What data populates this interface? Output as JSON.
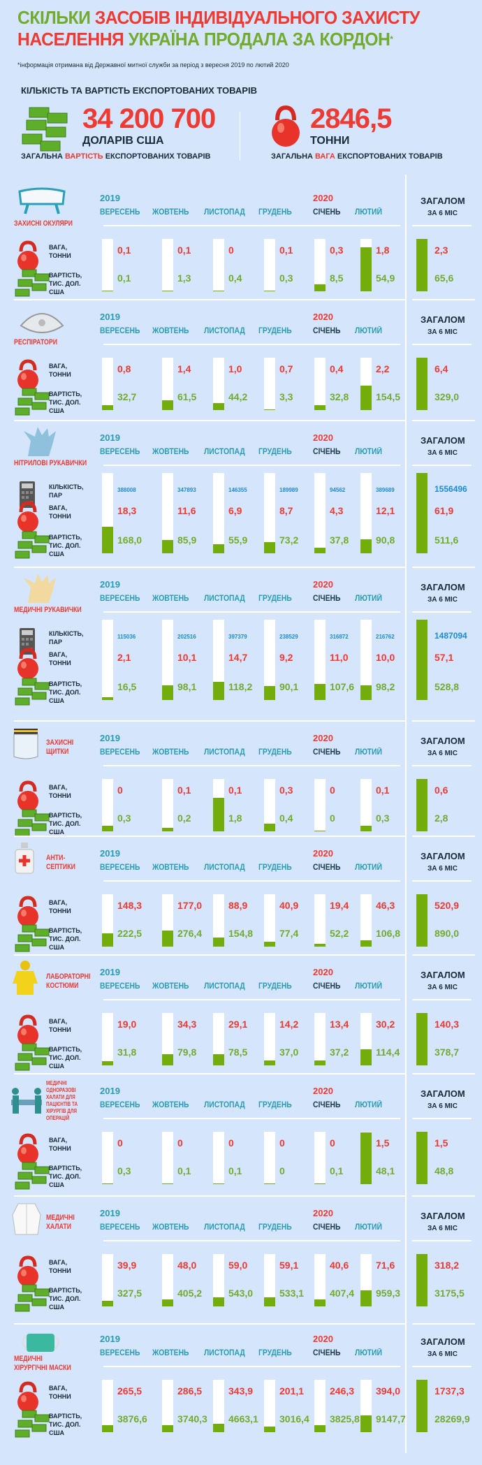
{
  "header": {
    "title_line1": [
      {
        "t": "СКІЛЬКИ ",
        "c": "g"
      },
      {
        "t": "ЗАСОБІВ ІНДИВІДУАЛЬНОГО ЗАХИСТУ",
        "c": "r"
      }
    ],
    "title_line2": [
      {
        "t": "НАСЕЛЕННЯ ",
        "c": "r"
      },
      {
        "t": "УКРАЇНА ПРОДАЛА ЗА КОРДОН",
        "c": "g"
      },
      {
        "t": "*",
        "c": "g"
      }
    ],
    "note": "*інформація отримана від Державної митної служби за період з вересня 2019 по лютий 2020",
    "summary_heading": "КІЛЬКІСТЬ ТА ВАРТІСТЬ ЕКСПОРТОВАНИХ ТОВАРІВ",
    "total_value": "34 200 700",
    "total_value_unit": "ДОЛАРІВ США",
    "total_value_caption": [
      "ЗАГАЛЬНА ",
      "ВАРТІСТЬ",
      " ЕКСПОРТОВАНИХ ТОВАРІВ"
    ],
    "total_weight": "2846,5",
    "total_weight_unit": "ТОННИ",
    "total_weight_caption": [
      "ЗАГАЛЬНА ",
      "ВАГА",
      " ЕКСПОРТОВАНИХ ТОВАРІВ"
    ]
  },
  "table_labels": {
    "year1": "2019",
    "year2": "2020",
    "months": [
      "ВЕРЕСЕНЬ",
      "ЖОВТЕНЬ",
      "ЛИСТОПАД",
      "ГРУДЕНЬ",
      "СІЧЕНЬ",
      "ЛЮТИЙ"
    ],
    "total": "ЗАГАЛОМ",
    "total_sub": "ЗА 6 МІС",
    "qty_label": "КІЛЬКІСТЬ,\nПАР",
    "weight_label": "ВАГА,\nТОННИ",
    "value_label": "ВАРТІСТЬ,\nТИС. ДОЛ.\nСША"
  },
  "colors": {
    "background": "#d5e5fb",
    "weight": "#ee3a32",
    "value": "#72ab2e",
    "bar": "#72ad0b",
    "quantity": "#1e8bd6",
    "month": "#2a9bb5"
  },
  "chart_data": {
    "type": "bar",
    "categories": [
      "ВЕРЕСЕНЬ 2019",
      "ЖОВТЕНЬ",
      "ЛИСТОПАД",
      "ГРУДЕНЬ",
      "СІЧЕНЬ 2020",
      "ЛЮТИЙ"
    ],
    "bar_measure": "value share of 6-month total",
    "products": [
      {
        "name": "ЗАХИСНІ ОКУЛЯРИ",
        "icon": "goggles-icon",
        "weight": [
          "0,1",
          "0,1",
          "0",
          "0,1",
          "0,3",
          "1,8"
        ],
        "weight_total": "2,3",
        "value": [
          "0,1",
          "1,3",
          "0,4",
          "0,3",
          "8,5",
          "54,9"
        ],
        "value_total": "65,6"
      },
      {
        "name": "РЕСПІРАТОРИ",
        "icon": "respirator-icon",
        "weight": [
          "0,8",
          "1,4",
          "1,0",
          "0,7",
          "0,4",
          "2,2"
        ],
        "weight_total": "6,4",
        "value": [
          "32,7",
          "61,5",
          "44,2",
          "3,3",
          "32,8",
          "154,5"
        ],
        "value_total": "329,0"
      },
      {
        "name": "НІТРИЛОВІ РУКАВИЧКИ",
        "icon": "nitrile-glove-icon",
        "qty": [
          "388008",
          "347893",
          "146355",
          "189989",
          "94562",
          "389689"
        ],
        "qty_total": "1556496",
        "weight": [
          "18,3",
          "11,6",
          "6,9",
          "8,7",
          "4,3",
          "12,1"
        ],
        "weight_total": "61,9",
        "value": [
          "168,0",
          "85,9",
          "55,9",
          "73,2",
          "37,8",
          "90,8"
        ],
        "value_total": "511,6"
      },
      {
        "name": "МЕДИЧНІ РУКАВИЧКИ",
        "icon": "medical-glove-icon",
        "qty": [
          "115036",
          "202516",
          "397379",
          "238529",
          "316872",
          "216762"
        ],
        "qty_total": "1487094",
        "weight": [
          "2,1",
          "10,1",
          "14,7",
          "9,2",
          "11,0",
          "10,0"
        ],
        "weight_total": "57,1",
        "value": [
          "16,5",
          "98,1",
          "118,2",
          "90,1",
          "107,6",
          "98,2"
        ],
        "value_total": "528,8"
      },
      {
        "name": "ЗАХИСНІ\nЩИТКИ",
        "icon": "face-shield-icon",
        "weight": [
          "0",
          "0,1",
          "0,1",
          "0,3",
          "0",
          "0,1"
        ],
        "weight_total": "0,6",
        "value": [
          "0,3",
          "0,2",
          "1,8",
          "0,4",
          "0",
          "0,3"
        ],
        "value_total": "2,8"
      },
      {
        "name": "АНТИ-\nСЕПТИКИ",
        "icon": "antiseptic-icon",
        "weight": [
          "148,3",
          "177,0",
          "88,9",
          "40,9",
          "19,4",
          "46,3"
        ],
        "weight_total": "520,9",
        "value": [
          "222,5",
          "276,4",
          "154,8",
          "77,4",
          "52,2",
          "106,8"
        ],
        "value_total": "890,0"
      },
      {
        "name": "ЛАБОРАТОРНІ\nКОСТЮМИ",
        "icon": "hazmat-suit-icon",
        "weight": [
          "19,0",
          "34,3",
          "29,1",
          "14,2",
          "13,4",
          "30,2"
        ],
        "weight_total": "140,3",
        "value": [
          "31,8",
          "79,8",
          "78,5",
          "37,0",
          "37,2",
          "114,4"
        ],
        "value_total": "378,7"
      },
      {
        "name": "МЕДИЧНІ\nОДНОРАЗОВІ\nХАЛАТИ ДЛЯ\nПАЦІЄНТІВ ТА\nХІРУРГІВ ДЛЯ\nОПЕРАЦІЙ",
        "icon": "surgeons-icon",
        "weight": [
          "0",
          "0",
          "0",
          "0",
          "0",
          "1,5"
        ],
        "weight_total": "1,5",
        "value": [
          "0,3",
          "0,1",
          "0,1",
          "0",
          "0,1",
          "48,1"
        ],
        "value_total": "48,8"
      },
      {
        "name": "МЕДИЧНІ\nХАЛАТИ",
        "icon": "lab-coat-icon",
        "weight": [
          "39,9",
          "48,0",
          "59,0",
          "59,1",
          "40,6",
          "71,6"
        ],
        "weight_total": "318,2",
        "value": [
          "327,5",
          "405,2",
          "543,0",
          "533,1",
          "407,4",
          "959,3"
        ],
        "value_total": "3175,5"
      },
      {
        "name": "МЕДИЧНІ\nХІРУРГІЧНІ МАСКИ",
        "icon": "surgical-mask-icon",
        "weight": [
          "265,5",
          "286,5",
          "343,9",
          "201,1",
          "246,3",
          "394,0"
        ],
        "weight_total": "1737,3",
        "value": [
          "3876,6",
          "3740,3",
          "4663,1",
          "3016,4",
          "3825,8",
          "9147,7"
        ],
        "value_total": "28269,9"
      }
    ]
  }
}
